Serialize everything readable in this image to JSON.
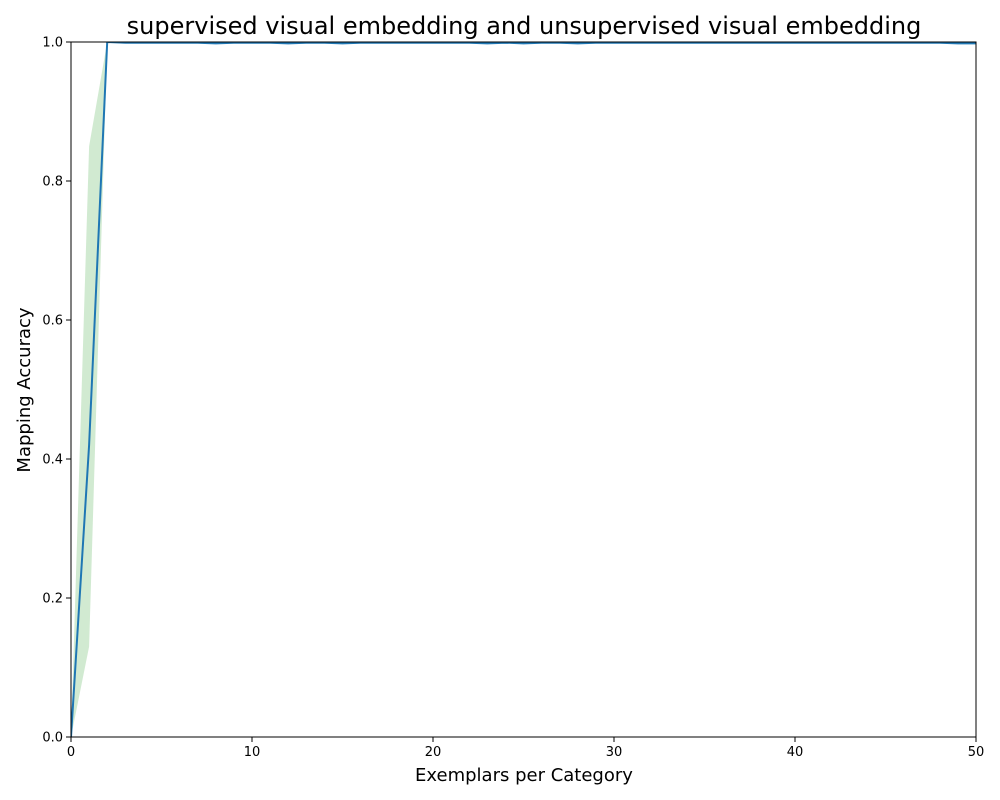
{
  "chart_data": {
    "type": "line",
    "title": "supervised visual embedding and unsupervised visual embedding",
    "xlabel": "Exemplars per Category",
    "ylabel": "Mapping Accuracy",
    "xlim": [
      0,
      50
    ],
    "ylim": [
      0.0,
      1.0
    ],
    "xticks": [
      0,
      10,
      20,
      30,
      40,
      50
    ],
    "xtick_labels": [
      "0",
      "10",
      "20",
      "30",
      "40",
      "50"
    ],
    "yticks": [
      0.0,
      0.2,
      0.4,
      0.6,
      0.8,
      1.0
    ],
    "ytick_labels": [
      "0.0",
      "0.2",
      "0.4",
      "0.6",
      "0.8",
      "1.0"
    ],
    "grid": false,
    "colors": {
      "line": "#1f77b4",
      "band": "#2ca02c"
    },
    "series": [
      {
        "x": [
          0,
          1,
          2,
          3,
          4,
          5,
          6,
          7,
          8,
          9,
          10,
          11,
          12,
          13,
          14,
          15,
          16,
          17,
          18,
          19,
          20,
          21,
          22,
          23,
          24,
          25,
          26,
          27,
          28,
          29,
          30,
          31,
          32,
          33,
          34,
          35,
          36,
          37,
          38,
          39,
          40,
          41,
          42,
          43,
          44,
          45,
          46,
          47,
          48,
          49,
          50
        ],
        "values": [
          0.0,
          0.42,
          1.0,
          0.999,
          0.999,
          0.999,
          0.999,
          0.999,
          0.998,
          0.999,
          0.999,
          0.999,
          0.998,
          0.999,
          0.999,
          0.998,
          0.999,
          0.999,
          0.999,
          0.999,
          0.999,
          0.999,
          0.999,
          0.998,
          0.999,
          0.998,
          0.999,
          0.999,
          0.998,
          0.999,
          0.999,
          0.999,
          0.999,
          0.999,
          0.999,
          0.999,
          0.999,
          0.999,
          0.999,
          0.999,
          0.999,
          0.999,
          0.999,
          0.999,
          0.999,
          0.999,
          0.999,
          0.999,
          0.999,
          0.998,
          0.998
        ],
        "band_lower": [
          0.0,
          0.13,
          1.0,
          0.999,
          0.999,
          0.999,
          0.999,
          0.999,
          0.998,
          0.999,
          0.999,
          0.999,
          0.998,
          0.999,
          0.999,
          0.998,
          0.999,
          0.999,
          0.999,
          0.999,
          0.999,
          0.999,
          0.999,
          0.998,
          0.999,
          0.998,
          0.999,
          0.999,
          0.998,
          0.999,
          0.999,
          0.999,
          0.999,
          0.999,
          0.999,
          0.999,
          0.999,
          0.999,
          0.999,
          0.999,
          0.999,
          0.999,
          0.999,
          0.999,
          0.999,
          0.999,
          0.999,
          0.999,
          0.999,
          0.998,
          0.998
        ],
        "band_upper": [
          0.0,
          0.85,
          1.0,
          0.999,
          0.999,
          0.999,
          0.999,
          0.999,
          0.998,
          0.999,
          0.999,
          0.999,
          0.998,
          0.999,
          0.999,
          0.998,
          0.999,
          0.999,
          0.999,
          0.999,
          0.999,
          0.999,
          0.999,
          0.998,
          0.999,
          0.998,
          0.999,
          0.999,
          0.998,
          0.999,
          0.999,
          0.999,
          0.999,
          0.999,
          0.999,
          0.999,
          0.999,
          0.999,
          0.999,
          0.999,
          0.999,
          0.999,
          0.999,
          0.999,
          0.999,
          0.999,
          0.999,
          0.999,
          0.999,
          0.998,
          0.998
        ]
      }
    ]
  }
}
